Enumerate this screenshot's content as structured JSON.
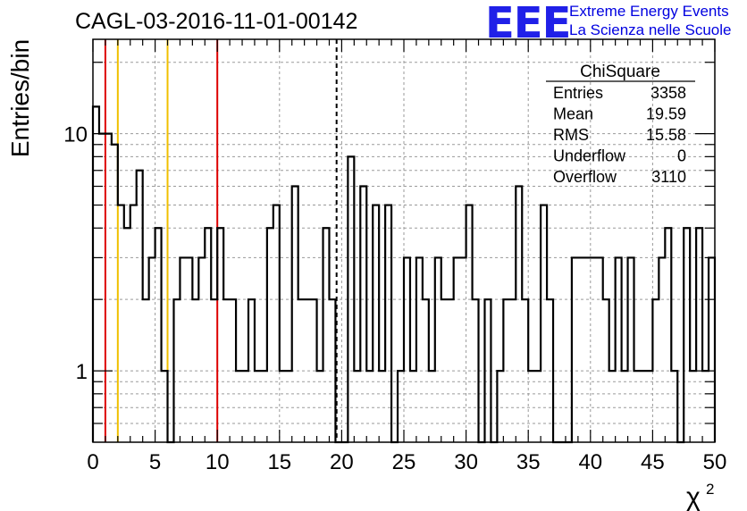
{
  "header": {
    "title": "CAGL-03-2016-11-01-00142",
    "logo_text": "EEE",
    "org_line1": "Extreme Energy Events",
    "org_line2": "La Scienza nelle Scuole"
  },
  "stats_box": {
    "name": "ChiSquare",
    "rows": [
      {
        "label": "Entries",
        "value": "3358"
      },
      {
        "label": "Mean",
        "value": "19.59"
      },
      {
        "label": "RMS",
        "value": "15.58"
      },
      {
        "label": "Underflow",
        "value": "0"
      },
      {
        "label": "Overflow",
        "value": "3110"
      }
    ]
  },
  "colors": {
    "histogram": "#000000",
    "red_line": "#dd0000",
    "yellow_line": "#f0c000",
    "logo": "#2020e8"
  },
  "chart_data": {
    "type": "histogram",
    "ylabel": "Entries/bin",
    "xlabel": "χ",
    "xlabel_superscript": "2",
    "xlim": [
      0,
      50
    ],
    "ylim": [
      0.5,
      25
    ],
    "yscale": "log",
    "grid": true,
    "bin_width": 0.5,
    "x_ticks": [
      "0",
      "5",
      "10",
      "15",
      "20",
      "25",
      "30",
      "35",
      "40",
      "45",
      "50"
    ],
    "y_tick_labels": [
      "1",
      "10"
    ],
    "values": [
      13,
      10,
      10,
      9,
      5,
      4,
      5,
      7,
      2,
      3,
      4,
      1,
      0,
      2,
      3,
      3,
      2,
      3,
      4,
      2,
      4,
      2,
      2,
      1,
      1,
      2,
      1,
      1,
      4,
      5,
      1,
      1,
      6,
      2,
      2,
      2,
      1,
      4,
      2,
      0,
      0,
      8,
      1,
      6,
      1,
      5,
      1,
      5,
      0,
      1,
      3,
      1,
      3,
      2,
      1,
      3,
      2,
      2,
      3,
      3,
      5,
      2,
      0,
      2,
      0,
      1,
      2,
      2,
      6,
      2,
      1,
      1,
      5,
      2,
      0,
      0,
      0,
      3,
      3,
      3,
      3,
      3,
      2,
      1,
      3,
      1,
      3,
      1,
      1,
      1,
      2,
      3,
      4,
      1,
      0,
      4,
      1,
      4,
      1,
      3
    ],
    "reference_lines": [
      {
        "x": 1,
        "color": "red",
        "style": "solid"
      },
      {
        "x": 2,
        "color": "yellow",
        "style": "solid"
      },
      {
        "x": 6,
        "color": "yellow",
        "style": "solid"
      },
      {
        "x": 10,
        "color": "red",
        "style": "solid"
      },
      {
        "x": 19.59,
        "color": "black",
        "style": "dashed"
      }
    ]
  }
}
